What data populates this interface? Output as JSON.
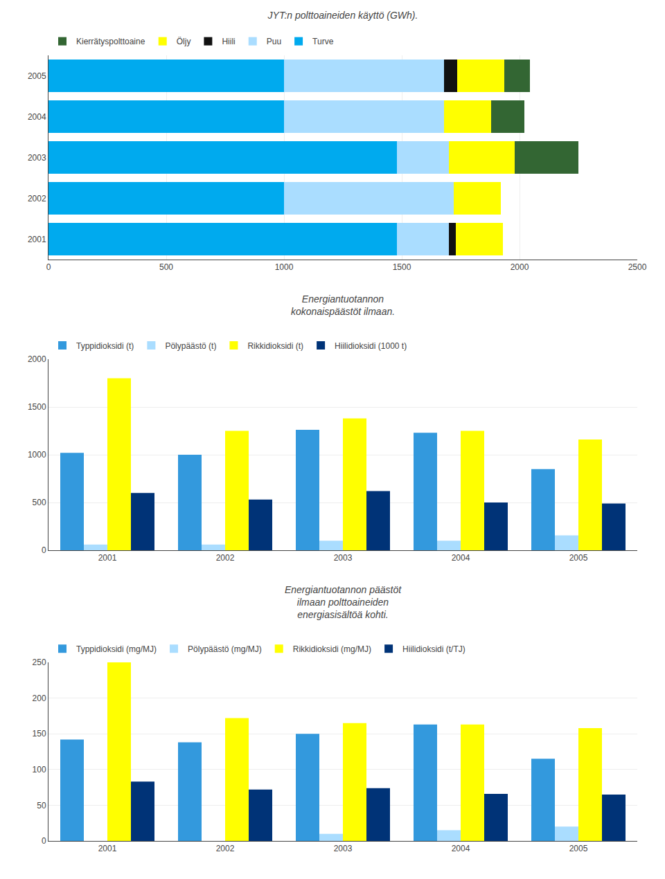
{
  "chart_data": [
    {
      "type": "bar",
      "title": "JYT:n polttoaineiden käyttö (GWh).",
      "orientation": "horizontal",
      "stacked": true,
      "categories": [
        "2001",
        "2002",
        "2003",
        "2004",
        "2005"
      ],
      "series": [
        {
          "name": "Turve",
          "color": "#00AAEE",
          "values": [
            1480,
            1000,
            1480,
            1000,
            1000
          ]
        },
        {
          "name": "Puu",
          "color": "#AADDFF",
          "values": [
            220,
            720,
            220,
            680,
            680
          ]
        },
        {
          "name": "Hiili",
          "color": "#111111",
          "values": [
            30,
            0,
            0,
            0,
            55
          ]
        },
        {
          "name": "Öljy",
          "color": "#FFFF00",
          "values": [
            200,
            200,
            280,
            200,
            200
          ]
        },
        {
          "name": "Kierrätyspolttoaine",
          "color": "#336633",
          "values": [
            0,
            0,
            270,
            140,
            110
          ]
        }
      ],
      "xlim": [
        0,
        2500
      ],
      "xticks": [
        0,
        500,
        1000,
        1500,
        2000,
        2500
      ],
      "grid": true,
      "legend": "top"
    },
    {
      "type": "bar",
      "title": "Energiantuotannon\nkokonaispäästöt ilmaan.",
      "categories": [
        "2001",
        "2002",
        "2003",
        "2004",
        "2005"
      ],
      "series": [
        {
          "name": "Typpidioksidi (t)",
          "color": "#3399DD",
          "values": [
            1020,
            1000,
            1260,
            1230,
            850
          ]
        },
        {
          "name": "Pölypäästö (t)",
          "color": "#AADDFF",
          "values": [
            60,
            60,
            100,
            100,
            155
          ]
        },
        {
          "name": "Rikkidioksidi (t)",
          "color": "#FFFF00",
          "values": [
            1800,
            1250,
            1380,
            1250,
            1160
          ]
        },
        {
          "name": "Hiilidioksidi (1000 t)",
          "color": "#003377",
          "values": [
            600,
            530,
            620,
            500,
            490
          ]
        }
      ],
      "ylim": [
        0,
        2000
      ],
      "yticks": [
        0,
        500,
        1000,
        1500,
        2000
      ],
      "grid": true,
      "legend": "top"
    },
    {
      "type": "bar",
      "title": "Energiantuotannon päästöt\nilmaan polttoaineiden\nenergiasisältöä kohti.",
      "categories": [
        "2001",
        "2002",
        "2003",
        "2004",
        "2005"
      ],
      "series": [
        {
          "name": "Typpidioksidi (mg/MJ)",
          "color": "#3399DD",
          "values": [
            142,
            138,
            150,
            163,
            115
          ]
        },
        {
          "name": "Pölypäästö (mg/MJ)",
          "color": "#AADDFF",
          "values": [
            0,
            0,
            10,
            15,
            20
          ]
        },
        {
          "name": "Rikkidioksidi (mg/MJ)",
          "color": "#FFFF00",
          "values": [
            250,
            172,
            165,
            163,
            158
          ]
        },
        {
          "name": "Hiilidioksidi (t/TJ)",
          "color": "#003377",
          "values": [
            83,
            72,
            74,
            66,
            65
          ]
        }
      ],
      "ylim": [
        0,
        250
      ],
      "yticks": [
        0,
        50,
        100,
        150,
        200,
        250
      ],
      "grid": true,
      "legend": "top"
    }
  ]
}
